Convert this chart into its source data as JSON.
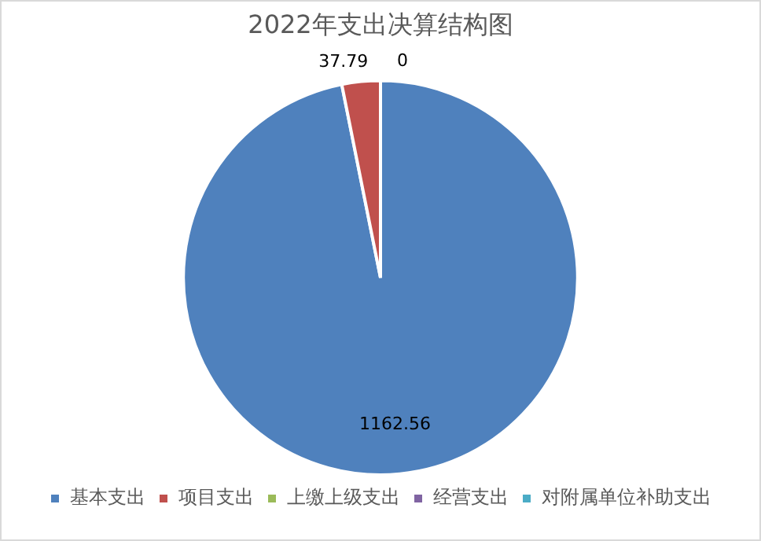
{
  "chart_data": {
    "type": "pie",
    "title": "2022年支出决算结构图",
    "categories": [
      "基本支出",
      "项目支出",
      "上缴上级支出",
      "经营支出",
      "对附属单位补助支出"
    ],
    "values": [
      1162.56,
      37.79,
      0,
      0,
      0
    ],
    "colors": [
      "#4f81bd",
      "#c0504d",
      "#9bbb59",
      "#8064a2",
      "#4bacc6"
    ],
    "value_labels": [
      "1162.56",
      "37.79",
      "0",
      null,
      null
    ],
    "legend": "bottom"
  }
}
